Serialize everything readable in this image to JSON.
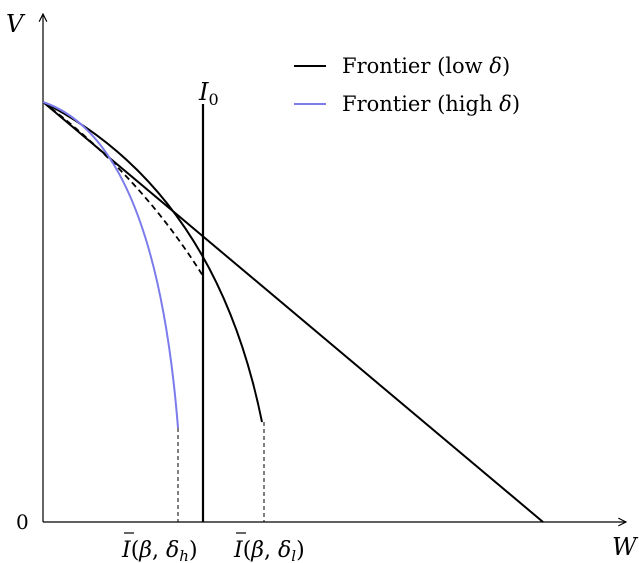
{
  "axes": {
    "y_label": "V",
    "x_label": "W",
    "origin_label": "0"
  },
  "lines": {
    "i0_label": "I",
    "i0_sub": "0"
  },
  "legend": {
    "low": {
      "text": "Frontier (low ",
      "symbol": "δ",
      "close": ")",
      "color": "#000000"
    },
    "high": {
      "text": "Frontier (high ",
      "symbol": "δ",
      "close": ")",
      "color": "#7b7bec"
    }
  },
  "ticks": {
    "high": {
      "bar": "I",
      "open": "(",
      "beta": "β",
      "comma": ", ",
      "delta": "δ",
      "sub": "h",
      "close": ")"
    },
    "low": {
      "bar": "I",
      "open": "(",
      "beta": "β",
      "comma": ", ",
      "delta": "δ",
      "sub": "l",
      "close": ")"
    }
  }
}
